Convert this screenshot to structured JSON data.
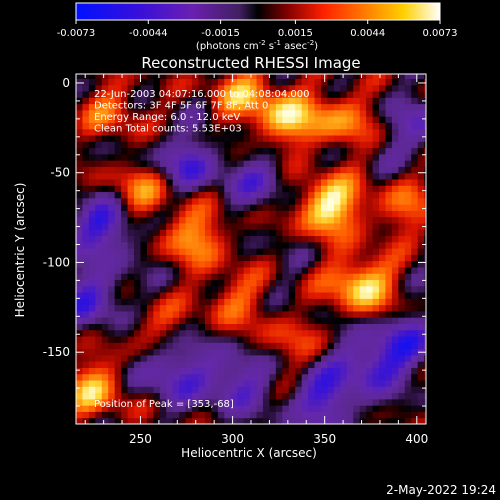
{
  "colorbar": {
    "tick_labels": [
      "-0.0073",
      "-0.0044",
      "-0.0015",
      "0.0015",
      "0.0044",
      "0.0073"
    ],
    "units_line1": "(photons cm",
    "units_exp1": "-2",
    "units_mid": " s",
    "units_exp2": "-1",
    "units_mid2": " asec",
    "units_exp3": "-2",
    "units_end": ")",
    "range": [
      -0.0073,
      0.0073
    ]
  },
  "chart_data": {
    "type": "heatmap",
    "title": "Reconstructed RHESSI Image",
    "xlabel": "Heliocentric X (arcsec)",
    "ylabel": "Heliocentric Y (arcsec)",
    "xlim": [
      215,
      405
    ],
    "ylim": [
      -190,
      5
    ],
    "x_ticks": [
      250,
      300,
      350,
      400
    ],
    "y_ticks": [
      0,
      -50,
      -100,
      -150
    ],
    "colormap": "rhessi (blue-purple-black-red-orange-yellow-white)",
    "value_range": [
      -0.0073,
      0.0073
    ],
    "annotations": [
      "22-Jun-2003 04:07:16.000 to 04:08:04.000",
      "Detectors: 3F 4F 5F 6F 7F 8F, Att 0",
      "Energy Range: 6.0 - 12.0 keV",
      "Clean      Total counts: 5.53E+03"
    ],
    "peak_label": "Position of Peak = [353,-68]",
    "peak": [
      353,
      -68
    ],
    "hotspots": [
      {
        "x": 352,
        "y": -68,
        "v": 1.0
      },
      {
        "x": 370,
        "y": -112,
        "v": 0.9
      },
      {
        "x": 330,
        "y": -20,
        "v": 0.75
      },
      {
        "x": 305,
        "y": -5,
        "v": 0.6
      },
      {
        "x": 360,
        "y": -20,
        "v": 0.55
      },
      {
        "x": 280,
        "y": -85,
        "v": 0.65
      },
      {
        "x": 250,
        "y": -60,
        "v": 0.55
      },
      {
        "x": 235,
        "y": -15,
        "v": 0.45
      },
      {
        "x": 225,
        "y": -170,
        "v": 0.7
      },
      {
        "x": 300,
        "y": -120,
        "v": 0.45
      },
      {
        "x": 395,
        "y": -70,
        "v": 0.45
      },
      {
        "x": 330,
        "y": -145,
        "v": 0.35
      },
      {
        "x": 255,
        "y": -135,
        "v": 0.35
      }
    ],
    "coldspots": [
      {
        "x": 230,
        "y": -80,
        "v": -0.7
      },
      {
        "x": 275,
        "y": -45,
        "v": -0.55
      },
      {
        "x": 225,
        "y": -120,
        "v": -0.6
      },
      {
        "x": 300,
        "y": -165,
        "v": -0.6
      },
      {
        "x": 350,
        "y": -175,
        "v": -0.65
      },
      {
        "x": 395,
        "y": -145,
        "v": -0.5
      },
      {
        "x": 400,
        "y": -25,
        "v": -0.4
      },
      {
        "x": 315,
        "y": -55,
        "v": -0.4
      },
      {
        "x": 265,
        "y": -160,
        "v": -0.55
      },
      {
        "x": 375,
        "y": -155,
        "v": -0.6
      }
    ]
  },
  "footer": {
    "date": "2-May-2022 19:24"
  }
}
